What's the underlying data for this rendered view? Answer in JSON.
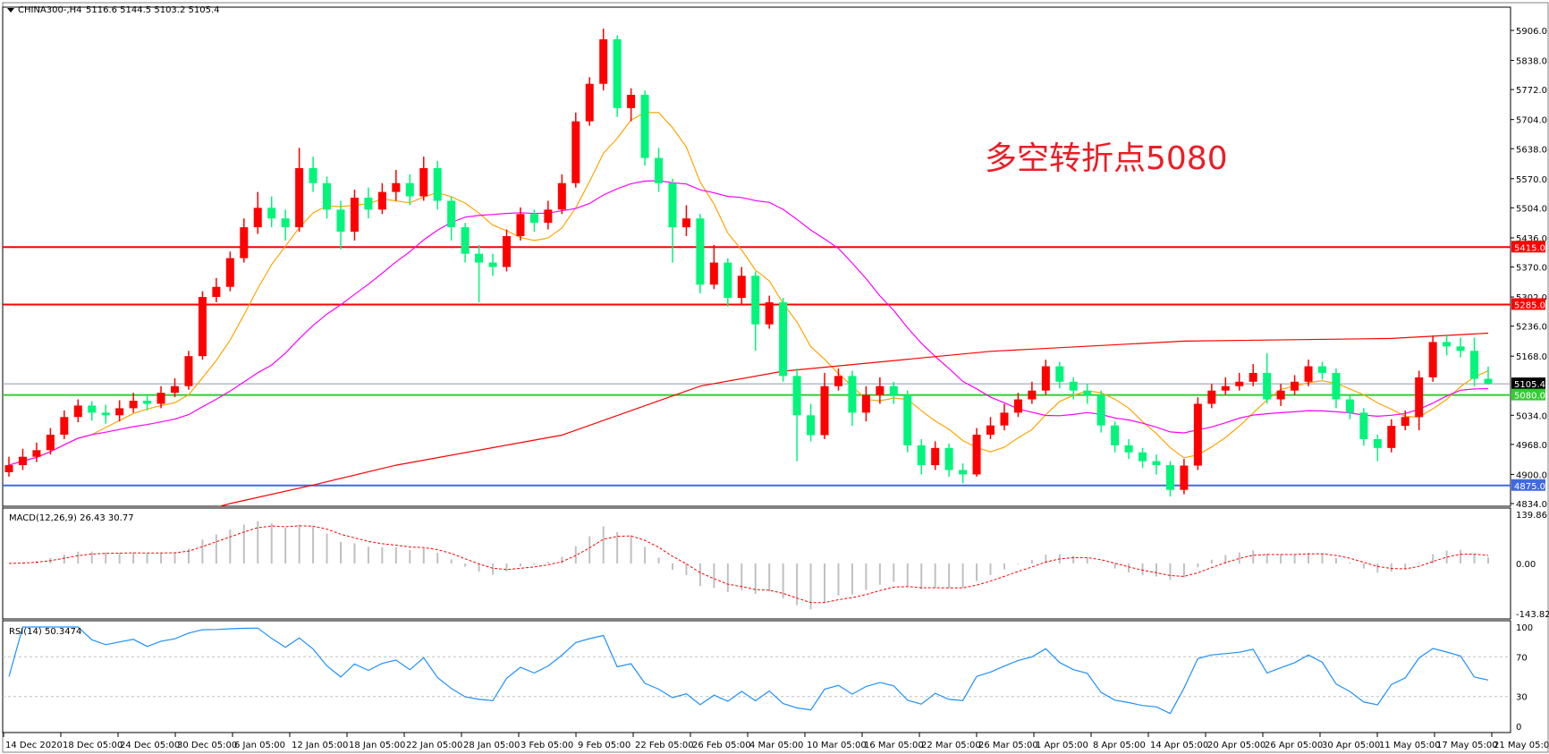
{
  "header": {
    "symbol_label": "CHINA300-,H4",
    "ohlc_text": "5116.6 5144.5 5103.2 5105.4"
  },
  "annotation": {
    "text": "多空转折点5080",
    "color": "#ee1c25"
  },
  "colors": {
    "bull_candle": "#ff0000",
    "bear_candle": "#00f57a",
    "ma_fast": "#ffa500",
    "ma_mid": "#ff00ff",
    "ma_long": "#ff0000",
    "macd_hist": "#c0c0c0",
    "macd_signal": "#ff0000",
    "rsi_line": "#1e90ff"
  },
  "chart_data": [
    {
      "type": "candlestick",
      "panel": "price",
      "ylim": [
        4834,
        5906
      ],
      "price_ticks": [
        5906,
        5838,
        5772,
        5704,
        5638,
        5570,
        5504,
        5436,
        5370,
        5302,
        5236,
        5168,
        5034,
        4968,
        4900,
        4834
      ],
      "time_labels": [
        "14 Dec 2020",
        "18 Dec 05:00",
        "24 Dec 05:00",
        "30 Dec 05:00",
        "6 Jan 05:00",
        "12 Jan 05:00",
        "18 Jan 05:00",
        "22 Jan 05:00",
        "28 Jan 05:00",
        "3 Feb 05:00",
        "9 Feb 05:00",
        "22 Feb 05:00",
        "26 Feb 05:00",
        "4 Mar 05:00",
        "10 Mar 05:00",
        "16 Mar 05:00",
        "22 Mar 05:00",
        "26 Mar 05:00",
        "1 Apr 05:00",
        "8 Apr 05:00",
        "14 Apr 05:00",
        "20 Apr 05:00",
        "26 Apr 05:00",
        "30 Apr 05:00",
        "11 May 05:00",
        "17 May 05:00",
        "21 May 05:00"
      ],
      "ohlc": [
        [
          4905,
          4940,
          4895,
          4921
        ],
        [
          4921,
          4958,
          4910,
          4940
        ],
        [
          4940,
          4972,
          4928,
          4955
        ],
        [
          4955,
          5005,
          4945,
          4990
        ],
        [
          4990,
          5045,
          4980,
          5030
        ],
        [
          5030,
          5070,
          5018,
          5056
        ],
        [
          5056,
          5066,
          5022,
          5040
        ],
        [
          5040,
          5058,
          5015,
          5034
        ],
        [
          5034,
          5068,
          5020,
          5050
        ],
        [
          5050,
          5085,
          5040,
          5067
        ],
        [
          5067,
          5080,
          5045,
          5060
        ],
        [
          5060,
          5100,
          5050,
          5085
        ],
        [
          5085,
          5118,
          5075,
          5100
        ],
        [
          5100,
          5180,
          5092,
          5168
        ],
        [
          5168,
          5315,
          5160,
          5302
        ],
        [
          5302,
          5345,
          5290,
          5325
        ],
        [
          5325,
          5405,
          5315,
          5390
        ],
        [
          5390,
          5480,
          5380,
          5460
        ],
        [
          5460,
          5540,
          5445,
          5504
        ],
        [
          5504,
          5530,
          5460,
          5480
        ],
        [
          5480,
          5500,
          5430,
          5460
        ],
        [
          5460,
          5640,
          5450,
          5594
        ],
        [
          5594,
          5620,
          5540,
          5560
        ],
        [
          5560,
          5575,
          5480,
          5500
        ],
        [
          5500,
          5520,
          5410,
          5450
        ],
        [
          5450,
          5545,
          5430,
          5527
        ],
        [
          5527,
          5550,
          5480,
          5500
        ],
        [
          5500,
          5560,
          5490,
          5540
        ],
        [
          5540,
          5590,
          5520,
          5560
        ],
        [
          5560,
          5580,
          5510,
          5530
        ],
        [
          5530,
          5620,
          5520,
          5594
        ],
        [
          5594,
          5610,
          5500,
          5520
        ],
        [
          5520,
          5530,
          5430,
          5460
        ],
        [
          5460,
          5470,
          5380,
          5400
        ],
        [
          5400,
          5420,
          5290,
          5380
        ],
        [
          5380,
          5400,
          5350,
          5370
        ],
        [
          5370,
          5455,
          5360,
          5440
        ],
        [
          5440,
          5505,
          5430,
          5490
        ],
        [
          5490,
          5500,
          5450,
          5470
        ],
        [
          5470,
          5520,
          5455,
          5500
        ],
        [
          5500,
          5580,
          5490,
          5560
        ],
        [
          5560,
          5720,
          5550,
          5700
        ],
        [
          5700,
          5800,
          5690,
          5785
        ],
        [
          5785,
          5910,
          5770,
          5886
        ],
        [
          5886,
          5895,
          5710,
          5730
        ],
        [
          5730,
          5775,
          5700,
          5760
        ],
        [
          5760,
          5770,
          5600,
          5617
        ],
        [
          5617,
          5640,
          5540,
          5560
        ],
        [
          5560,
          5570,
          5380,
          5460
        ],
        [
          5460,
          5510,
          5440,
          5480
        ],
        [
          5480,
          5490,
          5310,
          5330
        ],
        [
          5330,
          5420,
          5320,
          5380
        ],
        [
          5380,
          5390,
          5280,
          5300
        ],
        [
          5300,
          5370,
          5285,
          5350
        ],
        [
          5350,
          5360,
          5180,
          5240
        ],
        [
          5240,
          5305,
          5230,
          5290
        ],
        [
          5290,
          5300,
          5110,
          5123
        ],
        [
          5123,
          5140,
          4930,
          5034
        ],
        [
          5034,
          5060,
          4975,
          4989
        ],
        [
          4989,
          5130,
          4980,
          5100
        ],
        [
          5100,
          5140,
          5090,
          5123
        ],
        [
          5123,
          5135,
          5010,
          5040
        ],
        [
          5040,
          5100,
          5020,
          5080
        ],
        [
          5080,
          5120,
          5060,
          5100
        ],
        [
          5100,
          5110,
          5060,
          5080
        ],
        [
          5080,
          5090,
          4950,
          4966
        ],
        [
          4966,
          4980,
          4900,
          4921
        ],
        [
          4921,
          4975,
          4910,
          4960
        ],
        [
          4960,
          4970,
          4895,
          4910
        ],
        [
          4910,
          4925,
          4880,
          4900
        ],
        [
          4900,
          5005,
          4895,
          4990
        ],
        [
          4990,
          5030,
          4980,
          5011
        ],
        [
          5011,
          5060,
          5000,
          5040
        ],
        [
          5040,
          5085,
          5030,
          5070
        ],
        [
          5070,
          5110,
          5060,
          5090
        ],
        [
          5090,
          5160,
          5080,
          5145
        ],
        [
          5145,
          5155,
          5095,
          5110
        ],
        [
          5110,
          5120,
          5070,
          5090
        ],
        [
          5090,
          5105,
          5060,
          5080
        ],
        [
          5080,
          5090,
          4995,
          5011
        ],
        [
          5011,
          5020,
          4950,
          4966
        ],
        [
          4966,
          4980,
          4935,
          4950
        ],
        [
          4950,
          4960,
          4915,
          4930
        ],
        [
          4930,
          4945,
          4900,
          4921
        ],
        [
          4921,
          4930,
          4850,
          4865
        ],
        [
          4865,
          4935,
          4855,
          4920
        ],
        [
          4920,
          5075,
          4910,
          5060
        ],
        [
          5060,
          5105,
          5050,
          5090
        ],
        [
          5090,
          5120,
          5080,
          5100
        ],
        [
          5100,
          5130,
          5090,
          5110
        ],
        [
          5110,
          5150,
          5100,
          5130
        ],
        [
          5130,
          5175,
          5060,
          5070
        ],
        [
          5070,
          5105,
          5055,
          5090
        ],
        [
          5090,
          5125,
          5080,
          5110
        ],
        [
          5110,
          5160,
          5100,
          5145
        ],
        [
          5145,
          5155,
          5115,
          5130
        ],
        [
          5130,
          5140,
          5050,
          5070
        ],
        [
          5070,
          5080,
          5025,
          5040
        ],
        [
          5040,
          5050,
          4965,
          4980
        ],
        [
          4980,
          4990,
          4930,
          4960
        ],
        [
          4960,
          5025,
          4950,
          5010
        ],
        [
          5010,
          5045,
          5000,
          5030
        ],
        [
          5030,
          5135,
          5000,
          5120
        ],
        [
          5120,
          5215,
          5110,
          5200
        ],
        [
          5200,
          5215,
          5170,
          5190
        ],
        [
          5190,
          5210,
          5165,
          5180
        ],
        [
          5180,
          5210,
          5100,
          5116.6
        ],
        [
          5116.6,
          5144.5,
          5103.2,
          5105.4
        ]
      ],
      "ma_long_points": [
        [
          1,
          4700
        ],
        [
          17,
          4834
        ],
        [
          23,
          4876
        ],
        [
          29,
          4921
        ],
        [
          41,
          4989
        ],
        [
          51,
          5100
        ],
        [
          57,
          5134
        ],
        [
          72,
          5179
        ],
        [
          86,
          5202
        ],
        [
          101,
          5208
        ],
        [
          108,
          5220
        ]
      ],
      "horizontal_levels": [
        {
          "price": 5415.0,
          "label": "5415.0",
          "color": "#ff0000"
        },
        {
          "price": 5285.0,
          "label": "5285.0",
          "color": "#ff0000"
        },
        {
          "price": 5105.4,
          "label": "5105.4",
          "color": "#8c9aa8",
          "label_bg": "#000000"
        },
        {
          "price": 5080.0,
          "label": "5080.0",
          "color": "#32cd32"
        },
        {
          "price": 4875.0,
          "label": "4875.0",
          "color": "#4169e1"
        }
      ]
    },
    {
      "type": "bar+line",
      "panel": "macd",
      "title": "MACD(12,26,9) 26.43 30.77",
      "ylim": [
        -143.82,
        139.86
      ],
      "ticks": [
        "139.86",
        "0.00",
        "-143.82"
      ]
    },
    {
      "type": "line",
      "panel": "rsi",
      "title": "RSI(14) 50.3474",
      "ylim": [
        0,
        100
      ],
      "ticks": [
        "100",
        "70",
        "30",
        "0"
      ],
      "levels": [
        70,
        30
      ]
    }
  ]
}
